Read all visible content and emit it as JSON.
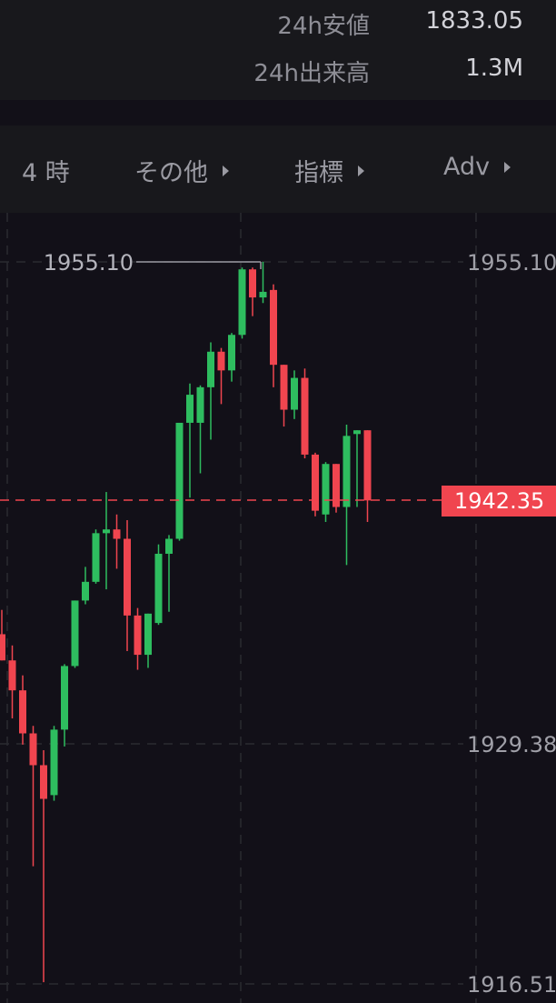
{
  "stats": {
    "low_label": "24h安値",
    "low_value": "1833.05",
    "volume_label": "24h出来高",
    "volume_value": "1.3M"
  },
  "toolbar": {
    "interval": "4 時",
    "more": "その他",
    "indicators": "指標",
    "adv": "Adv"
  },
  "colors": {
    "up": "#2ebd5f",
    "down": "#f0454f",
    "price_tag": "#f0454f"
  },
  "chart_data": {
    "type": "candlestick",
    "y_axis_labels": [
      "1955.10",
      "1929.38",
      "1916.51"
    ],
    "high_marker": "1955.10",
    "current_price": "1942.35",
    "ylim": [
      1916.51,
      1955.1
    ],
    "candles": [
      {
        "o": 1935.2,
        "h": 1936.5,
        "l": 1933.8,
        "c": 1933.8
      },
      {
        "o": 1933.8,
        "h": 1934.6,
        "l": 1930.7,
        "c": 1932.2
      },
      {
        "o": 1932.2,
        "h": 1933.0,
        "l": 1929.3,
        "c": 1929.9
      },
      {
        "o": 1929.9,
        "h": 1930.3,
        "l": 1922.8,
        "c": 1928.2
      },
      {
        "o": 1928.2,
        "h": 1929.0,
        "l": 1916.6,
        "c": 1926.4
      },
      {
        "o": 1926.6,
        "h": 1930.3,
        "l": 1926.3,
        "c": 1930.1
      },
      {
        "o": 1930.1,
        "h": 1933.6,
        "l": 1929.2,
        "c": 1933.5
      },
      {
        "o": 1933.5,
        "h": 1937.0,
        "l": 1933.4,
        "c": 1937.0
      },
      {
        "o": 1937.0,
        "h": 1938.8,
        "l": 1936.8,
        "c": 1938.0
      },
      {
        "o": 1938.0,
        "h": 1940.8,
        "l": 1937.9,
        "c": 1940.6
      },
      {
        "o": 1940.6,
        "h": 1942.8,
        "l": 1937.6,
        "c": 1940.8
      },
      {
        "o": 1940.8,
        "h": 1941.6,
        "l": 1938.7,
        "c": 1940.3
      },
      {
        "o": 1940.3,
        "h": 1941.3,
        "l": 1934.3,
        "c": 1936.2
      },
      {
        "o": 1936.2,
        "h": 1936.6,
        "l": 1933.3,
        "c": 1934.1
      },
      {
        "o": 1934.1,
        "h": 1936.3,
        "l": 1933.4,
        "c": 1936.3
      },
      {
        "o": 1935.8,
        "h": 1940.0,
        "l": 1935.7,
        "c": 1939.5
      },
      {
        "o": 1939.5,
        "h": 1940.5,
        "l": 1936.4,
        "c": 1940.3
      },
      {
        "o": 1940.3,
        "h": 1946.5,
        "l": 1940.2,
        "c": 1946.5
      },
      {
        "o": 1946.5,
        "h": 1948.6,
        "l": 1942.5,
        "c": 1948.0
      },
      {
        "o": 1946.5,
        "h": 1948.5,
        "l": 1943.8,
        "c": 1948.4
      },
      {
        "o": 1948.4,
        "h": 1950.8,
        "l": 1945.6,
        "c": 1950.3
      },
      {
        "o": 1950.3,
        "h": 1950.5,
        "l": 1947.5,
        "c": 1949.3
      },
      {
        "o": 1949.3,
        "h": 1951.3,
        "l": 1948.7,
        "c": 1951.2
      },
      {
        "o": 1951.2,
        "h": 1954.8,
        "l": 1951.0,
        "c": 1954.7
      },
      {
        "o": 1954.7,
        "h": 1954.8,
        "l": 1952.2,
        "c": 1953.2
      },
      {
        "o": 1953.2,
        "h": 1955.1,
        "l": 1952.9,
        "c": 1953.5
      },
      {
        "o": 1953.6,
        "h": 1953.9,
        "l": 1948.4,
        "c": 1949.6
      },
      {
        "o": 1949.6,
        "h": 1949.6,
        "l": 1946.3,
        "c": 1947.2
      },
      {
        "o": 1947.2,
        "h": 1949.3,
        "l": 1946.7,
        "c": 1948.9
      },
      {
        "o": 1948.9,
        "h": 1949.4,
        "l": 1944.6,
        "c": 1944.8
      },
      {
        "o": 1944.8,
        "h": 1944.9,
        "l": 1941.5,
        "c": 1941.8
      },
      {
        "o": 1941.6,
        "h": 1944.4,
        "l": 1941.2,
        "c": 1944.3
      },
      {
        "o": 1944.3,
        "h": 1944.3,
        "l": 1941.7,
        "c": 1942.0
      },
      {
        "o": 1942.0,
        "h": 1946.4,
        "l": 1938.9,
        "c": 1945.8
      },
      {
        "o": 1945.9,
        "h": 1946.1,
        "l": 1942.0,
        "c": 1946.1
      },
      {
        "o": 1946.1,
        "h": 1946.1,
        "l": 1941.2,
        "c": 1942.35
      }
    ]
  }
}
